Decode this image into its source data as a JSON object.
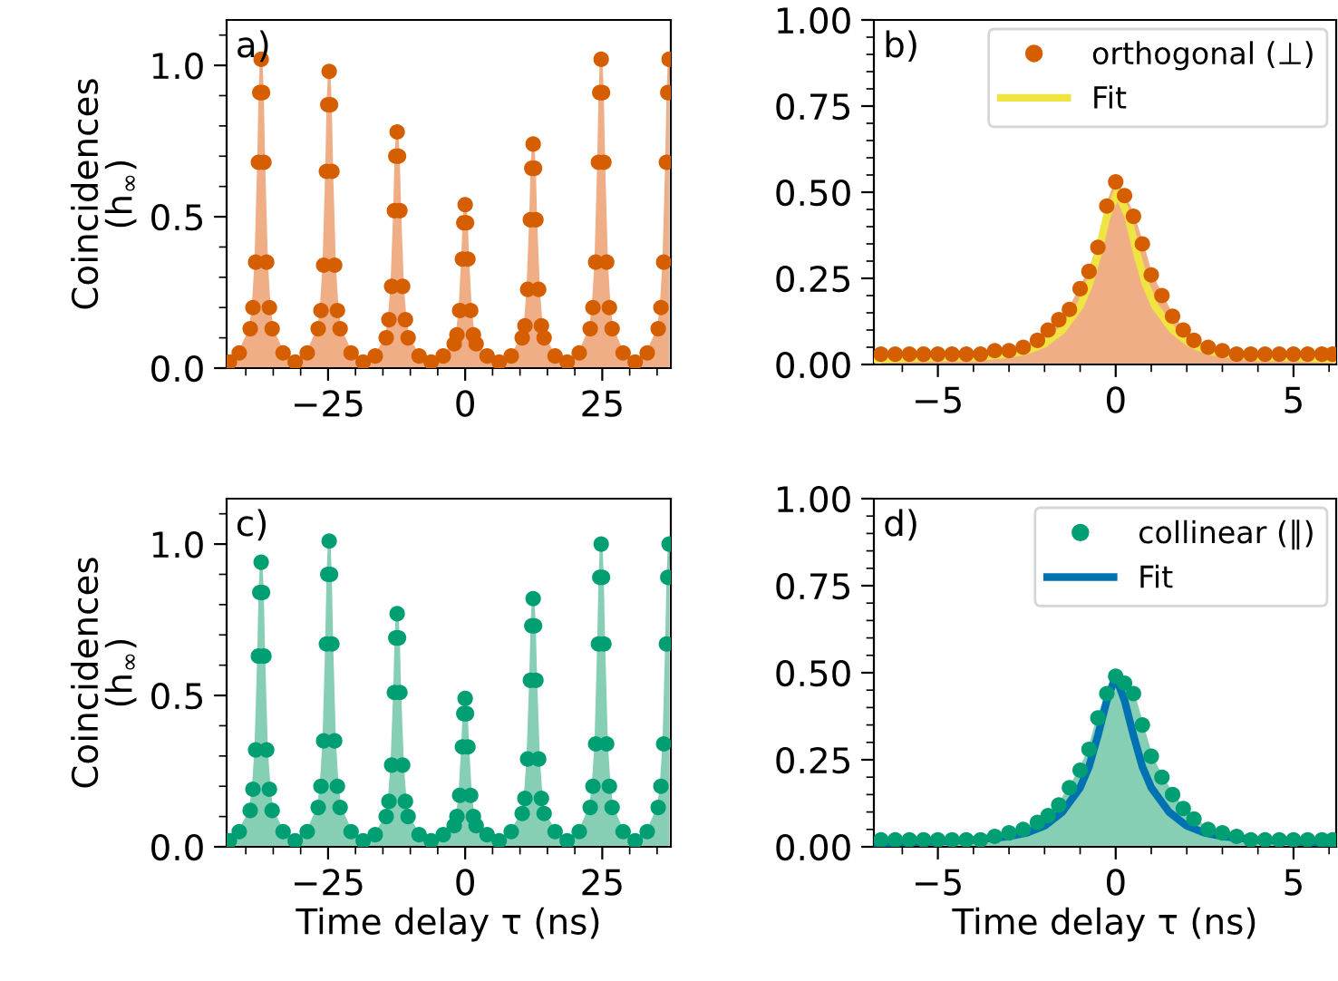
{
  "chart_data": [
    {
      "type": "scatter",
      "ylabel": "Coincidences\n(h$_{∞}$)",
      "annotations": [
        "a)"
      ],
      "grid": false,
      "legend": false,
      "xlim": [
        -43.5,
        37.5
      ],
      "xticks": [
        {
          "value": -25,
          "label": "−25"
        },
        0,
        25,
        {
          "value": -40,
          "label": null
        },
        {
          "value": -35,
          "label": null
        },
        {
          "value": -30,
          "label": null
        },
        {
          "value": -20,
          "label": null
        },
        {
          "value": -15,
          "label": null
        },
        {
          "value": -10,
          "label": null
        },
        {
          "value": -5,
          "label": null
        },
        {
          "value": 5,
          "label": null
        },
        {
          "value": 10,
          "label": null
        },
        {
          "value": 15,
          "label": null
        },
        {
          "value": 20,
          "label": null
        },
        {
          "value": 30,
          "label": null
        },
        {
          "value": 35,
          "label": null
        }
      ],
      "ylim": [
        0,
        1.15
      ],
      "yticks": [
        {
          "value": 0,
          "label": "0.0"
        },
        {
          "value": 0.5,
          "label": "0.5"
        },
        {
          "value": 1,
          "label": "1.0"
        },
        {
          "value": 0.1,
          "label": null
        },
        {
          "value": 0.2,
          "label": null
        },
        {
          "value": 0.3,
          "label": null
        },
        {
          "value": 0.4,
          "label": null
        },
        {
          "value": 0.6,
          "label": null
        },
        {
          "value": 0.7,
          "label": null
        },
        {
          "value": 0.8,
          "label": null
        },
        {
          "value": 0.9,
          "label": null
        },
        {
          "value": 1.1,
          "label": null
        }
      ],
      "x": [
        -43,
        -41.2,
        -39.2,
        -38.7,
        -38.2,
        -37.7,
        -37.45,
        -37.2,
        -36.95,
        -36.7,
        -36.2,
        -35.7,
        -35.2,
        -33.2,
        -31,
        -28.8,
        -26.8,
        -26.3,
        -25.8,
        -25.3,
        -25.05,
        -24.8,
        -24.55,
        -24.3,
        -23.8,
        -23.3,
        -22.8,
        -20.8,
        -18.6,
        -16.4,
        -14.4,
        -13.9,
        -13.4,
        -12.9,
        -12.65,
        -12.4,
        -12.15,
        -11.9,
        -11.4,
        -10.9,
        -10.4,
        -8.4,
        -6.2,
        -4,
        -2,
        -1.5,
        -1,
        -0.5,
        -0.25,
        0,
        0.25,
        0.5,
        1,
        1.5,
        2,
        4,
        6.2,
        8.4,
        10.4,
        10.9,
        11.4,
        11.9,
        12.15,
        12.4,
        12.65,
        12.9,
        13.4,
        13.9,
        14.4,
        16.4,
        18.6,
        20.8,
        22.8,
        23.3,
        23.8,
        24.3,
        24.55,
        24.8,
        25.05,
        25.3,
        25.8,
        26.3,
        26.8,
        28.8,
        31,
        33.2,
        35.2,
        35.7,
        36.2,
        36.7,
        36.95,
        37.2
      ],
      "series": [
        {
          "type": "area",
          "color": "#efae86",
          "values": [
            0.02,
            0.05,
            0.13,
            0.2,
            0.35,
            0.68,
            0.91,
            1.02,
            0.91,
            0.68,
            0.35,
            0.2,
            0.13,
            0.05,
            0.02,
            0.05,
            0.13,
            0.19,
            0.34,
            0.65,
            0.87,
            0.98,
            0.87,
            0.65,
            0.34,
            0.19,
            0.13,
            0.05,
            0.02,
            0.04,
            0.1,
            0.16,
            0.27,
            0.52,
            0.7,
            0.78,
            0.7,
            0.52,
            0.27,
            0.16,
            0.1,
            0.04,
            0.02,
            0.04,
            0.08,
            0.11,
            0.19,
            0.36,
            0.48,
            0.54,
            0.48,
            0.36,
            0.19,
            0.11,
            0.08,
            0.04,
            0.02,
            0.04,
            0.1,
            0.14,
            0.26,
            0.49,
            0.66,
            0.74,
            0.66,
            0.49,
            0.26,
            0.14,
            0.1,
            0.04,
            0.02,
            0.05,
            0.13,
            0.2,
            0.35,
            0.68,
            0.91,
            1.02,
            0.91,
            0.68,
            0.35,
            0.2,
            0.13,
            0.05,
            0.02,
            0.05,
            0.13,
            0.2,
            0.35,
            0.68,
            0.91,
            1.02
          ]
        },
        {
          "marker": "circle",
          "color": "#d55e00",
          "values": [
            0.02,
            0.05,
            0.13,
            0.2,
            0.35,
            0.68,
            0.91,
            1.02,
            0.91,
            0.68,
            0.35,
            0.2,
            0.13,
            0.05,
            0.02,
            0.05,
            0.13,
            0.19,
            0.34,
            0.65,
            0.87,
            0.98,
            0.87,
            0.65,
            0.34,
            0.19,
            0.13,
            0.05,
            0.02,
            0.04,
            0.1,
            0.16,
            0.27,
            0.52,
            0.7,
            0.78,
            0.7,
            0.52,
            0.27,
            0.16,
            0.1,
            0.04,
            0.02,
            0.04,
            0.08,
            0.11,
            0.19,
            0.36,
            0.48,
            0.54,
            0.48,
            0.36,
            0.19,
            0.11,
            0.08,
            0.04,
            0.02,
            0.04,
            0.1,
            0.14,
            0.26,
            0.49,
            0.66,
            0.74,
            0.66,
            0.49,
            0.26,
            0.14,
            0.1,
            0.04,
            0.02,
            0.05,
            0.13,
            0.2,
            0.35,
            0.68,
            0.91,
            1.02,
            0.91,
            0.68,
            0.35,
            0.2,
            0.13,
            0.05,
            0.02,
            0.05,
            0.13,
            0.2,
            0.35,
            0.68,
            0.91,
            1.02
          ]
        }
      ]
    },
    {
      "type": "scatter",
      "annotations": [
        "b)"
      ],
      "grid": false,
      "legend": "top right",
      "xlim": [
        -6.8,
        6.2
      ],
      "xticks": [
        {
          "value": -5,
          "label": "−5"
        },
        0,
        5,
        {
          "value": -6,
          "label": null
        },
        {
          "value": -4,
          "label": null
        },
        {
          "value": -3,
          "label": null
        },
        {
          "value": -2,
          "label": null
        },
        {
          "value": -1,
          "label": null
        },
        {
          "value": 1,
          "label": null
        },
        {
          "value": 2,
          "label": null
        },
        {
          "value": 3,
          "label": null
        },
        {
          "value": 4,
          "label": null
        },
        {
          "value": 6,
          "label": null
        }
      ],
      "ylim": [
        0,
        1
      ],
      "yticks": [
        {
          "value": 0,
          "label": "0.00"
        },
        {
          "value": 0.25,
          "label": "0.25"
        },
        {
          "value": 0.5,
          "label": "0.50"
        },
        {
          "value": 0.75,
          "label": "0.75"
        },
        {
          "value": 1,
          "label": "1.00"
        },
        {
          "value": 0.05,
          "label": null
        },
        {
          "value": 0.1,
          "label": null
        },
        {
          "value": 0.15,
          "label": null
        },
        {
          "value": 0.2,
          "label": null
        },
        {
          "value": 0.3,
          "label": null
        },
        {
          "value": 0.35,
          "label": null
        },
        {
          "value": 0.4,
          "label": null
        },
        {
          "value": 0.45,
          "label": null
        },
        {
          "value": 0.55,
          "label": null
        },
        {
          "value": 0.6,
          "label": null
        },
        {
          "value": 0.65,
          "label": null
        },
        {
          "value": 0.7,
          "label": null
        },
        {
          "value": 0.8,
          "label": null
        },
        {
          "value": 0.85,
          "label": null
        },
        {
          "value": 0.9,
          "label": null
        },
        {
          "value": 0.95,
          "label": null
        }
      ],
      "x": [
        -6.6,
        -6.2,
        -5.8,
        -5.4,
        -5,
        -4.6,
        -4.2,
        -3.8,
        -3.4,
        -3,
        -2.6,
        -2.2,
        -1.9,
        -1.6,
        -1.3,
        -1,
        -0.75,
        -0.5,
        -0.25,
        0,
        0.25,
        0.5,
        0.75,
        1,
        1.3,
        1.6,
        1.9,
        2.2,
        2.6,
        3,
        3.4,
        3.8,
        4.2,
        4.6,
        5,
        5.4,
        5.8,
        6.1
      ],
      "series": [
        {
          "type": "area",
          "color": "#efae86",
          "values": [
            0.03,
            0.03,
            0.03,
            0.03,
            0.03,
            0.03,
            0.03,
            0.03,
            0.04,
            0.04,
            0.05,
            0.07,
            0.1,
            0.13,
            0.16,
            0.22,
            0.27,
            0.34,
            0.46,
            0.53,
            0.49,
            0.43,
            0.35,
            0.26,
            0.2,
            0.14,
            0.1,
            0.07,
            0.05,
            0.04,
            0.03,
            0.03,
            0.03,
            0.03,
            0.03,
            0.03,
            0.03,
            0.03
          ]
        },
        {
          "marker": "circle",
          "name": "orthogonal (⊥)",
          "color": "#d55e00",
          "values": [
            0.03,
            0.03,
            0.03,
            0.03,
            0.03,
            0.03,
            0.03,
            0.03,
            0.04,
            0.04,
            0.05,
            0.07,
            0.1,
            0.13,
            0.16,
            0.22,
            0.27,
            0.34,
            0.46,
            0.53,
            0.49,
            0.43,
            0.35,
            0.26,
            0.2,
            0.14,
            0.1,
            0.07,
            0.05,
            0.04,
            0.03,
            0.03,
            0.03,
            0.03,
            0.03,
            0.03,
            0.03,
            0.03
          ]
        },
        {
          "type": "line",
          "name": "Fit",
          "color": "#f0e442",
          "x": [
            -6.8,
            -5,
            -4,
            -3,
            -2.5,
            -2,
            -1.5,
            -1,
            -0.75,
            -0.5,
            -0.25,
            0.05,
            0.35,
            0.6,
            0.85,
            1.1,
            1.6,
            2.1,
            2.6,
            3.1,
            4,
            5,
            6.2
          ],
          "values": [
            0.015,
            0.02,
            0.02,
            0.03,
            0.04,
            0.06,
            0.1,
            0.17,
            0.23,
            0.32,
            0.43,
            0.5,
            0.43,
            0.32,
            0.23,
            0.17,
            0.1,
            0.06,
            0.04,
            0.03,
            0.02,
            0.02,
            0.015
          ]
        }
      ]
    },
    {
      "type": "scatter",
      "ylabel": "Coincidences\n(h$_{∞}$)",
      "xlabel": "Time delay τ (ns)",
      "annotations": [
        "c)"
      ],
      "grid": false,
      "legend": false,
      "xlim": [
        -43.5,
        37.5
      ],
      "xticks": [
        {
          "value": -25,
          "label": "−25"
        },
        0,
        25,
        {
          "value": -40,
          "label": null
        },
        {
          "value": -35,
          "label": null
        },
        {
          "value": -30,
          "label": null
        },
        {
          "value": -20,
          "label": null
        },
        {
          "value": -15,
          "label": null
        },
        {
          "value": -10,
          "label": null
        },
        {
          "value": -5,
          "label": null
        },
        {
          "value": 5,
          "label": null
        },
        {
          "value": 10,
          "label": null
        },
        {
          "value": 15,
          "label": null
        },
        {
          "value": 20,
          "label": null
        },
        {
          "value": 30,
          "label": null
        },
        {
          "value": 35,
          "label": null
        }
      ],
      "ylim": [
        0,
        1.15
      ],
      "yticks": [
        {
          "value": 0,
          "label": "0.0"
        },
        {
          "value": 0.5,
          "label": "0.5"
        },
        {
          "value": 1,
          "label": "1.0"
        },
        {
          "value": 0.1,
          "label": null
        },
        {
          "value": 0.2,
          "label": null
        },
        {
          "value": 0.3,
          "label": null
        },
        {
          "value": 0.4,
          "label": null
        },
        {
          "value": 0.6,
          "label": null
        },
        {
          "value": 0.7,
          "label": null
        },
        {
          "value": 0.8,
          "label": null
        },
        {
          "value": 0.9,
          "label": null
        },
        {
          "value": 1.1,
          "label": null
        }
      ],
      "x": [
        -43,
        -41.2,
        -39.2,
        -38.7,
        -38.2,
        -37.7,
        -37.45,
        -37.2,
        -36.95,
        -36.7,
        -36.2,
        -35.7,
        -35.2,
        -33.2,
        -31,
        -28.8,
        -26.8,
        -26.3,
        -25.8,
        -25.3,
        -25.05,
        -24.8,
        -24.55,
        -24.3,
        -23.8,
        -23.3,
        -22.8,
        -20.8,
        -18.6,
        -16.4,
        -14.4,
        -13.9,
        -13.4,
        -12.9,
        -12.65,
        -12.4,
        -12.15,
        -11.9,
        -11.4,
        -10.9,
        -10.4,
        -8.4,
        -6.2,
        -4,
        -2,
        -1.5,
        -1,
        -0.5,
        -0.25,
        0,
        0.25,
        0.5,
        1,
        1.5,
        2,
        4,
        6.2,
        8.4,
        10.4,
        10.9,
        11.4,
        11.9,
        12.15,
        12.4,
        12.65,
        12.9,
        13.4,
        13.9,
        14.4,
        16.4,
        18.6,
        20.8,
        22.8,
        23.3,
        23.8,
        24.3,
        24.55,
        24.8,
        25.05,
        25.3,
        25.8,
        26.3,
        26.8,
        28.8,
        31,
        33.2,
        35.2,
        35.7,
        36.2,
        36.7,
        36.95,
        37.2
      ],
      "series": [
        {
          "type": "area",
          "color": "#86cfb5",
          "values": [
            0.02,
            0.05,
            0.12,
            0.19,
            0.32,
            0.63,
            0.84,
            0.94,
            0.84,
            0.63,
            0.32,
            0.19,
            0.12,
            0.05,
            0.02,
            0.05,
            0.13,
            0.2,
            0.35,
            0.67,
            0.9,
            1.01,
            0.9,
            0.67,
            0.35,
            0.2,
            0.13,
            0.05,
            0.02,
            0.04,
            0.1,
            0.15,
            0.27,
            0.51,
            0.69,
            0.77,
            0.69,
            0.51,
            0.27,
            0.15,
            0.1,
            0.04,
            0.02,
            0.04,
            0.07,
            0.1,
            0.17,
            0.33,
            0.44,
            0.49,
            0.44,
            0.33,
            0.17,
            0.1,
            0.07,
            0.04,
            0.02,
            0.05,
            0.11,
            0.16,
            0.29,
            0.55,
            0.73,
            0.82,
            0.73,
            0.55,
            0.29,
            0.16,
            0.11,
            0.05,
            0.02,
            0.05,
            0.13,
            0.2,
            0.34,
            0.67,
            0.89,
            1.0,
            0.89,
            0.67,
            0.34,
            0.2,
            0.13,
            0.05,
            0.02,
            0.05,
            0.13,
            0.2,
            0.34,
            0.67,
            0.89,
            1.0
          ]
        },
        {
          "marker": "circle",
          "color": "#009e73",
          "values": [
            0.02,
            0.05,
            0.12,
            0.19,
            0.32,
            0.63,
            0.84,
            0.94,
            0.84,
            0.63,
            0.32,
            0.19,
            0.12,
            0.05,
            0.02,
            0.05,
            0.13,
            0.2,
            0.35,
            0.67,
            0.9,
            1.01,
            0.9,
            0.67,
            0.35,
            0.2,
            0.13,
            0.05,
            0.02,
            0.04,
            0.1,
            0.15,
            0.27,
            0.51,
            0.69,
            0.77,
            0.69,
            0.51,
            0.27,
            0.15,
            0.1,
            0.04,
            0.02,
            0.04,
            0.07,
            0.1,
            0.17,
            0.33,
            0.44,
            0.49,
            0.44,
            0.33,
            0.17,
            0.1,
            0.07,
            0.04,
            0.02,
            0.05,
            0.11,
            0.16,
            0.29,
            0.55,
            0.73,
            0.82,
            0.73,
            0.55,
            0.29,
            0.16,
            0.11,
            0.05,
            0.02,
            0.05,
            0.13,
            0.2,
            0.34,
            0.67,
            0.89,
            1.0,
            0.89,
            0.67,
            0.34,
            0.2,
            0.13,
            0.05,
            0.02,
            0.05,
            0.13,
            0.2,
            0.34,
            0.67,
            0.89,
            1.0
          ]
        }
      ]
    },
    {
      "type": "scatter",
      "xlabel": "Time delay τ (ns)",
      "annotations": [
        "d)"
      ],
      "grid": false,
      "legend": "top right",
      "xlim": [
        -6.8,
        6.2
      ],
      "xticks": [
        {
          "value": -5,
          "label": "−5"
        },
        0,
        5,
        {
          "value": -6,
          "label": null
        },
        {
          "value": -4,
          "label": null
        },
        {
          "value": -3,
          "label": null
        },
        {
          "value": -2,
          "label": null
        },
        {
          "value": -1,
          "label": null
        },
        {
          "value": 1,
          "label": null
        },
        {
          "value": 2,
          "label": null
        },
        {
          "value": 3,
          "label": null
        },
        {
          "value": 4,
          "label": null
        },
        {
          "value": 6,
          "label": null
        }
      ],
      "ylim": [
        0,
        1
      ],
      "yticks": [
        {
          "value": 0,
          "label": "0.00"
        },
        {
          "value": 0.25,
          "label": "0.25"
        },
        {
          "value": 0.5,
          "label": "0.50"
        },
        {
          "value": 0.75,
          "label": "0.75"
        },
        {
          "value": 1,
          "label": "1.00"
        },
        {
          "value": 0.05,
          "label": null
        },
        {
          "value": 0.1,
          "label": null
        },
        {
          "value": 0.15,
          "label": null
        },
        {
          "value": 0.2,
          "label": null
        },
        {
          "value": 0.3,
          "label": null
        },
        {
          "value": 0.35,
          "label": null
        },
        {
          "value": 0.4,
          "label": null
        },
        {
          "value": 0.45,
          "label": null
        },
        {
          "value": 0.55,
          "label": null
        },
        {
          "value": 0.6,
          "label": null
        },
        {
          "value": 0.65,
          "label": null
        },
        {
          "value": 0.7,
          "label": null
        },
        {
          "value": 0.8,
          "label": null
        },
        {
          "value": 0.85,
          "label": null
        },
        {
          "value": 0.9,
          "label": null
        },
        {
          "value": 0.95,
          "label": null
        }
      ],
      "x": [
        -6.6,
        -6.2,
        -5.8,
        -5.4,
        -5,
        -4.6,
        -4.2,
        -3.8,
        -3.4,
        -3,
        -2.6,
        -2.2,
        -1.9,
        -1.6,
        -1.3,
        -1,
        -0.75,
        -0.5,
        -0.25,
        0,
        0.25,
        0.5,
        0.75,
        1,
        1.3,
        1.6,
        1.9,
        2.2,
        2.6,
        3,
        3.4,
        3.8,
        4.2,
        4.6,
        5,
        5.4,
        5.8,
        6.1
      ],
      "series": [
        {
          "type": "area",
          "color": "#86cfb5",
          "values": [
            0.02,
            0.02,
            0.02,
            0.02,
            0.02,
            0.02,
            0.02,
            0.02,
            0.03,
            0.04,
            0.05,
            0.07,
            0.09,
            0.12,
            0.17,
            0.22,
            0.28,
            0.37,
            0.44,
            0.49,
            0.47,
            0.44,
            0.35,
            0.26,
            0.2,
            0.15,
            0.11,
            0.08,
            0.05,
            0.04,
            0.03,
            0.02,
            0.02,
            0.02,
            0.02,
            0.02,
            0.02,
            0.02
          ]
        },
        {
          "marker": "circle",
          "name": "collinear (∥)",
          "color": "#009e73",
          "values": [
            0.02,
            0.02,
            0.02,
            0.02,
            0.02,
            0.02,
            0.02,
            0.02,
            0.03,
            0.04,
            0.05,
            0.07,
            0.09,
            0.12,
            0.17,
            0.22,
            0.28,
            0.37,
            0.44,
            0.49,
            0.47,
            0.44,
            0.35,
            0.26,
            0.2,
            0.15,
            0.11,
            0.08,
            0.05,
            0.04,
            0.03,
            0.02,
            0.02,
            0.02,
            0.02,
            0.02,
            0.02,
            0.02
          ]
        },
        {
          "type": "line",
          "name": "Fit",
          "color": "#0072b2",
          "x": [
            -6.8,
            -5,
            -4,
            -3,
            -2.5,
            -2,
            -1.5,
            -1,
            -0.75,
            -0.5,
            -0.25,
            0,
            0.25,
            0.5,
            0.75,
            1,
            1.5,
            2,
            2.5,
            3,
            4,
            5,
            6.2
          ],
          "values": [
            0.01,
            0.015,
            0.02,
            0.03,
            0.04,
            0.06,
            0.1,
            0.17,
            0.23,
            0.32,
            0.42,
            0.49,
            0.42,
            0.32,
            0.23,
            0.17,
            0.1,
            0.06,
            0.04,
            0.03,
            0.02,
            0.015,
            0.01
          ]
        }
      ]
    }
  ]
}
